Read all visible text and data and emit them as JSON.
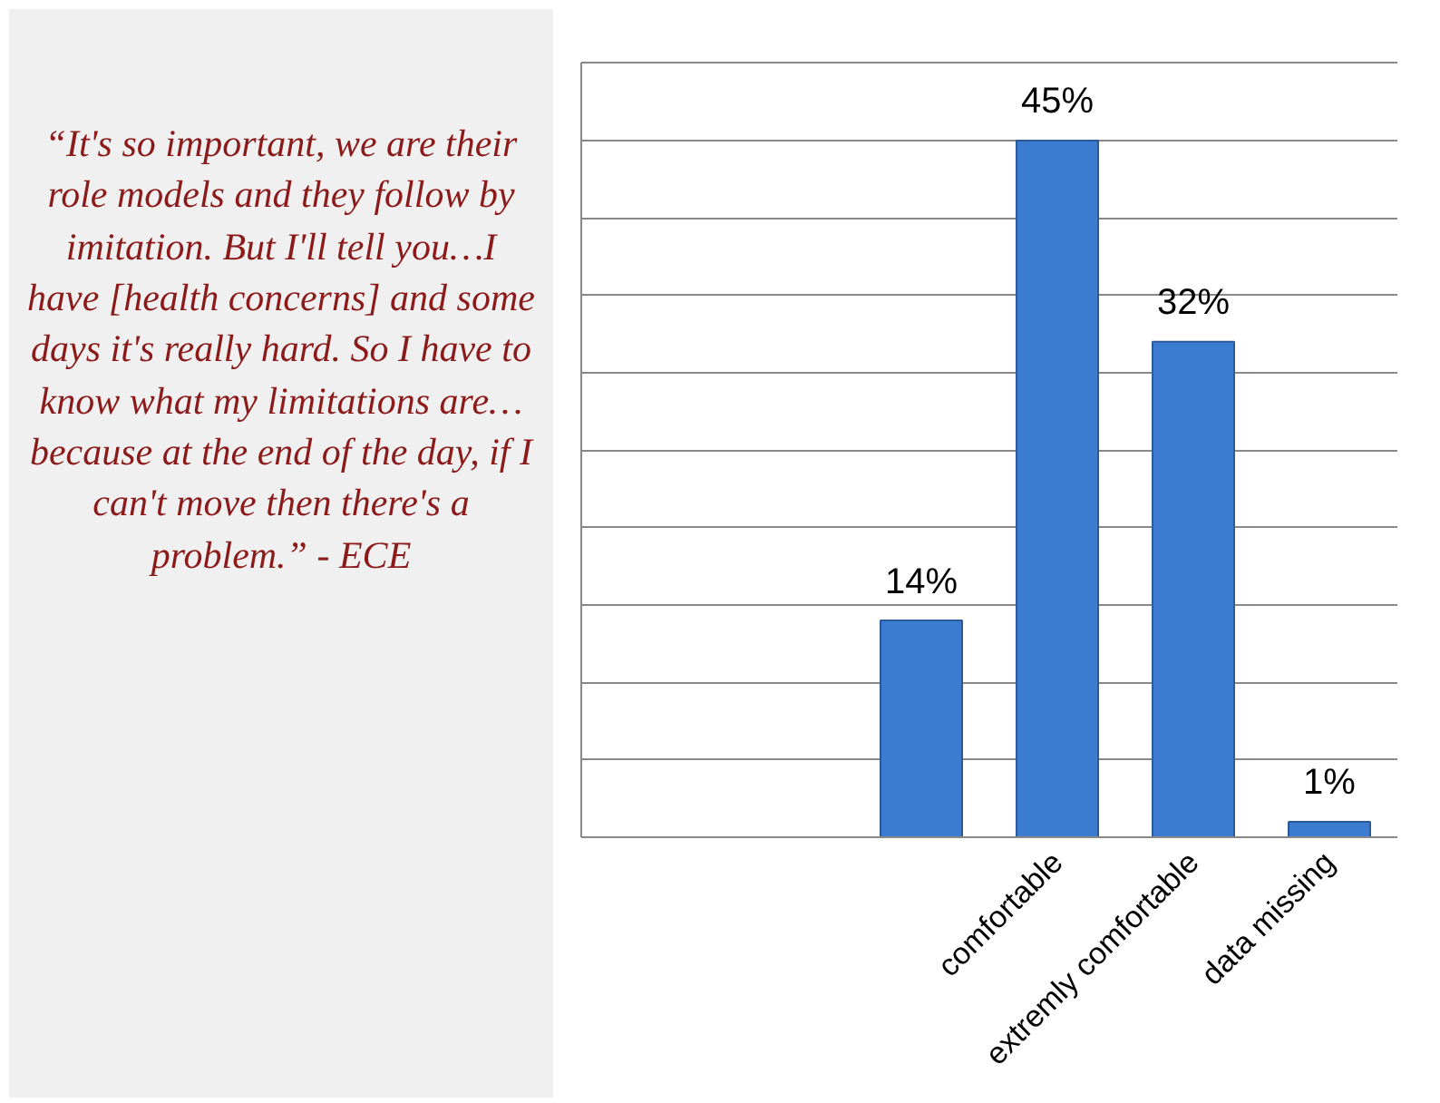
{
  "chart_data": {
    "type": "bar",
    "categories": [
      null,
      null,
      null,
      "comfortable",
      "extremly comfortable",
      "data missing"
    ],
    "values": [
      null,
      null,
      14,
      45,
      32,
      1
    ],
    "value_labels": [
      null,
      null,
      "14%",
      "45%",
      "32%",
      "1%"
    ],
    "color": "#3b7bd0",
    "ylim": [
      0,
      50
    ],
    "yticks": [
      {
        "value": 0,
        "label": null
      },
      {
        "value": 5,
        "label": null
      },
      {
        "value": 10,
        "label": null
      },
      {
        "value": 15,
        "label": null
      },
      {
        "value": 20,
        "label": null
      },
      {
        "value": 25,
        "label": null
      },
      {
        "value": 30,
        "label": null
      },
      {
        "value": 35,
        "label": null
      },
      {
        "value": 40,
        "label": null
      },
      {
        "value": 45,
        "label": null
      },
      {
        "value": 50,
        "label": null
      }
    ],
    "tick_labels": "x",
    "grid": "y",
    "annotations": [
      "“It's so important, we are their role models and they follow by imitation. But I'll tell you…I have [health concerns] and some days it's really hard. So I have to know what my limitations are… because at the end of the day, if I can't move then there's a problem.” - ECE"
    ]
  }
}
